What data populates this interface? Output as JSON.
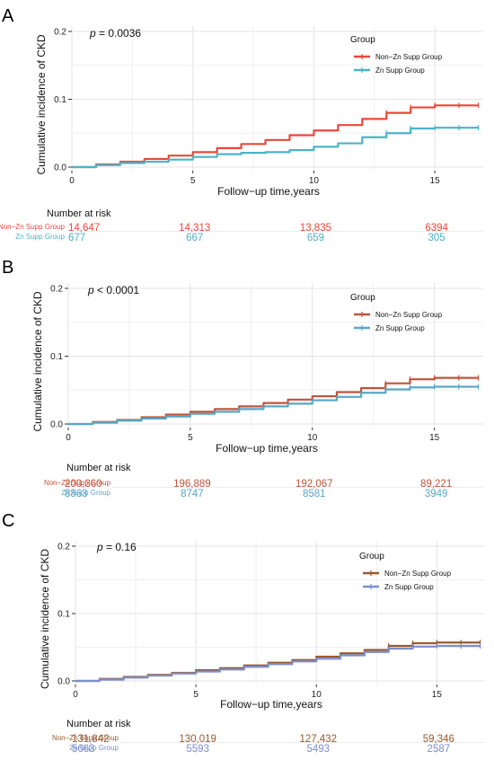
{
  "chart_data": [
    {
      "panel": "A",
      "type": "line",
      "p_value": "= 0.0036",
      "xlabel": "Follow−up time,years",
      "ylabel": "Cumulative incidence of CKD",
      "xlim": [
        0,
        17
      ],
      "ylim": [
        0,
        0.2
      ],
      "xticks": [
        0,
        5,
        10,
        15
      ],
      "yticks": [
        0.0,
        0.1,
        0.2
      ],
      "ytick_labels": [
        "0.0",
        "0.1",
        "0.2"
      ],
      "grid": true,
      "legend_title": "Group",
      "legend_position": "top-right",
      "series": [
        {
          "name": "Non−Zn Supp Group",
          "color": "#e8493a",
          "x": [
            0,
            1,
            2,
            3,
            4,
            5,
            6,
            7,
            8,
            9,
            10,
            11,
            12,
            13,
            14,
            15,
            16,
            16.8
          ],
          "y": [
            0,
            0.004,
            0.008,
            0.012,
            0.017,
            0.022,
            0.028,
            0.034,
            0.04,
            0.047,
            0.054,
            0.062,
            0.071,
            0.08,
            0.088,
            0.091,
            0.091,
            0.091
          ]
        },
        {
          "name": "Zn Supp Group",
          "color": "#4bb3c8",
          "x": [
            0,
            1,
            2,
            3,
            4,
            5,
            6,
            7,
            8,
            9,
            10,
            11,
            12,
            13,
            14,
            15,
            16,
            16.8
          ],
          "y": [
            0,
            0.003,
            0.006,
            0.008,
            0.011,
            0.015,
            0.019,
            0.021,
            0.022,
            0.025,
            0.03,
            0.035,
            0.044,
            0.05,
            0.057,
            0.058,
            0.058,
            0.058
          ]
        }
      ],
      "risk_table": {
        "title": "Number at risk",
        "rows": [
          {
            "name": "Non−Zn Supp Group",
            "color": "#e8493a",
            "values": [
              "14,647",
              "14,313",
              "13,835",
              "6394"
            ]
          },
          {
            "name": "Zn Supp Group",
            "color": "#4bb3c8",
            "values": [
              "677",
              "667",
              "659",
              "305"
            ]
          }
        ]
      }
    },
    {
      "panel": "B",
      "type": "line",
      "p_value": "< 0.0001",
      "xlabel": "Follow−up time,years",
      "ylabel": "Cumulative incidence of CKD",
      "xlim": [
        0,
        17
      ],
      "ylim": [
        0,
        0.2
      ],
      "xticks": [
        0,
        5,
        10,
        15
      ],
      "yticks": [
        0.0,
        0.1,
        0.2
      ],
      "ytick_labels": [
        "0.0",
        "0.1",
        "0.2"
      ],
      "grid": true,
      "legend_title": "Group",
      "legend_position": "top-right",
      "series": [
        {
          "name": "Non−Zn Supp Group",
          "color": "#c0543a",
          "x": [
            0,
            1,
            2,
            3,
            4,
            5,
            6,
            7,
            8,
            9,
            10,
            11,
            12,
            13,
            14,
            15,
            16,
            16.8
          ],
          "y": [
            0,
            0.003,
            0.006,
            0.01,
            0.014,
            0.018,
            0.022,
            0.026,
            0.031,
            0.036,
            0.041,
            0.047,
            0.053,
            0.06,
            0.066,
            0.068,
            0.068,
            0.068
          ]
        },
        {
          "name": "Zn Supp Group",
          "color": "#5aa6c8",
          "x": [
            0,
            1,
            2,
            3,
            4,
            5,
            6,
            7,
            8,
            9,
            10,
            11,
            12,
            13,
            14,
            15,
            16,
            16.8
          ],
          "y": [
            0,
            0.002,
            0.005,
            0.008,
            0.011,
            0.015,
            0.018,
            0.022,
            0.026,
            0.03,
            0.035,
            0.04,
            0.046,
            0.051,
            0.054,
            0.055,
            0.055,
            0.055
          ]
        }
      ],
      "risk_table": {
        "title": "Number at risk",
        "rows": [
          {
            "name": "Non−Zn Supp Group",
            "color": "#c0543a",
            "values": [
              "200,360",
              "196,889",
              "192,067",
              "89,221"
            ]
          },
          {
            "name": "Zn Supp Group",
            "color": "#5aa6c8",
            "values": [
              "8863",
              "8747",
              "8581",
              "3949"
            ]
          }
        ]
      }
    },
    {
      "panel": "C",
      "type": "line",
      "p_value": "= 0.16",
      "xlabel": "Follow−up time,years",
      "ylabel": "Cumulative incidence of CKD",
      "xlim": [
        0,
        17
      ],
      "ylim": [
        0,
        0.2
      ],
      "xticks": [
        0,
        5,
        10,
        15
      ],
      "yticks": [
        0.0,
        0.1,
        0.2
      ],
      "ytick_labels": [
        "0.0",
        "0.1",
        "0.2"
      ],
      "grid": true,
      "legend_title": "Group",
      "legend_position": "top-right",
      "series": [
        {
          "name": "Non−Zn Supp Group",
          "color": "#9a5a2e",
          "x": [
            0,
            1,
            2,
            3,
            4,
            5,
            6,
            7,
            8,
            9,
            10,
            11,
            12,
            13,
            14,
            15,
            16,
            16.8
          ],
          "y": [
            0,
            0.003,
            0.006,
            0.009,
            0.012,
            0.016,
            0.019,
            0.023,
            0.027,
            0.031,
            0.036,
            0.041,
            0.046,
            0.052,
            0.056,
            0.057,
            0.057,
            0.057
          ]
        },
        {
          "name": "Zn Supp Group",
          "color": "#7a8fd0",
          "x": [
            0,
            1,
            2,
            3,
            4,
            5,
            6,
            7,
            8,
            9,
            10,
            11,
            12,
            13,
            14,
            15,
            16,
            16.8
          ],
          "y": [
            0,
            0.002,
            0.005,
            0.008,
            0.011,
            0.014,
            0.017,
            0.021,
            0.025,
            0.029,
            0.033,
            0.038,
            0.043,
            0.048,
            0.051,
            0.052,
            0.052,
            0.052
          ]
        }
      ],
      "risk_table": {
        "title": "Number at risk",
        "rows": [
          {
            "name": "Non−Zn Supp Group",
            "color": "#9a5a2e",
            "values": [
              "131,842",
              "130,019",
              "127,432",
              "59,346"
            ]
          },
          {
            "name": "Zn Supp Group",
            "color": "#7a8fd0",
            "values": [
              "5663",
              "5593",
              "5493",
              "2587"
            ]
          }
        ]
      }
    }
  ]
}
